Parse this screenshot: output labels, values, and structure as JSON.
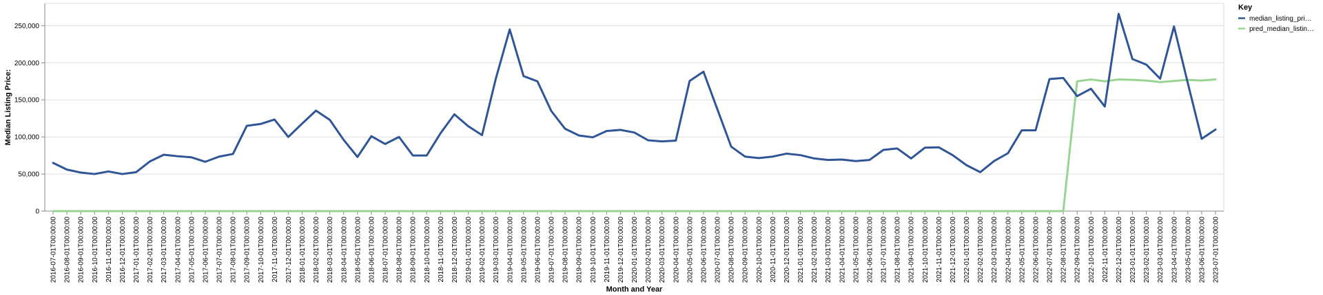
{
  "chart_data": {
    "type": "line",
    "xlabel": "Month and Year",
    "ylabel": "Median Listing Price:",
    "ylim": [
      0,
      280000
    ],
    "yticks": [
      0,
      50000,
      100000,
      150000,
      200000,
      250000
    ],
    "ytick_labels": [
      "0",
      "50,000",
      "100,000",
      "150,000",
      "200,000",
      "250,000"
    ],
    "grid": true,
    "legend": {
      "title": "Key",
      "placement": "top-right"
    },
    "x": [
      "2016-07-01T00:00:00",
      "2016-08-01T00:00:00",
      "2016-09-01T00:00:00",
      "2016-10-01T00:00:00",
      "2016-11-01T00:00:00",
      "2016-12-01T00:00:00",
      "2017-01-01T00:00:00",
      "2017-02-01T00:00:00",
      "2017-03-01T00:00:00",
      "2017-04-01T00:00:00",
      "2017-05-01T00:00:00",
      "2017-06-01T00:00:00",
      "2017-07-01T00:00:00",
      "2017-08-01T00:00:00",
      "2017-09-01T00:00:00",
      "2017-10-01T00:00:00",
      "2017-11-01T00:00:00",
      "2017-12-01T00:00:00",
      "2018-01-01T00:00:00",
      "2018-02-01T00:00:00",
      "2018-03-01T00:00:00",
      "2018-04-01T00:00:00",
      "2018-05-01T00:00:00",
      "2018-06-01T00:00:00",
      "2018-07-01T00:00:00",
      "2018-08-01T00:00:00",
      "2018-09-01T00:00:00",
      "2018-10-01T00:00:00",
      "2018-11-01T00:00:00",
      "2018-12-01T00:00:00",
      "2019-01-01T00:00:00",
      "2019-02-01T00:00:00",
      "2019-03-01T00:00:00",
      "2019-04-01T00:00:00",
      "2019-05-01T00:00:00",
      "2019-06-01T00:00:00",
      "2019-07-01T00:00:00",
      "2019-08-01T00:00:00",
      "2019-09-01T00:00:00",
      "2019-10-01T00:00:00",
      "2019-11-01T00:00:00",
      "2019-12-01T00:00:00",
      "2020-01-01T00:00:00",
      "2020-02-01T00:00:00",
      "2020-03-01T00:00:00",
      "2020-04-01T00:00:00",
      "2020-05-01T00:00:00",
      "2020-06-01T00:00:00",
      "2020-07-01T00:00:00",
      "2020-08-01T00:00:00",
      "2020-09-01T00:00:00",
      "2020-10-01T00:00:00",
      "2020-11-01T00:00:00",
      "2020-12-01T00:00:00",
      "2021-01-01T00:00:00",
      "2021-02-01T00:00:00",
      "2021-03-01T00:00:00",
      "2021-04-01T00:00:00",
      "2021-05-01T00:00:00",
      "2021-06-01T00:00:00",
      "2021-07-01T00:00:00",
      "2021-08-01T00:00:00",
      "2021-09-01T00:00:00",
      "2021-10-01T00:00:00",
      "2021-11-01T00:00:00",
      "2021-12-01T00:00:00",
      "2022-01-01T00:00:00",
      "2022-02-01T00:00:00",
      "2022-03-01T00:00:00",
      "2022-04-01T00:00:00",
      "2022-05-01T00:00:00",
      "2022-06-01T00:00:00",
      "2022-07-01T00:00:00",
      "2022-08-01T00:00:00",
      "2022-09-01T00:00:00",
      "2022-10-01T00:00:00",
      "2022-11-01T00:00:00",
      "2022-12-01T00:00:00",
      "2023-01-01T00:00:00",
      "2023-02-01T00:00:00",
      "2023-03-01T00:00:00",
      "2023-04-01T00:00:00",
      "2023-05-01T00:00:00",
      "2023-06-01T00:00:00",
      "2023-07-01T00:00:00"
    ],
    "series": [
      {
        "name": "median_listing_pri…",
        "color": "#2f5597",
        "values": [
          65000,
          56000,
          52000,
          50000,
          53500,
          50000,
          52500,
          67000,
          76000,
          74000,
          72500,
          66500,
          73500,
          77000,
          115000,
          117500,
          123500,
          100000,
          118000,
          135500,
          123000,
          96000,
          73000,
          101000,
          90500,
          100000,
          75000,
          75000,
          105000,
          130500,
          114500,
          102500,
          179000,
          245000,
          182000,
          175000,
          135000,
          111000,
          102000,
          99500,
          108000,
          109500,
          106000,
          95500,
          94000,
          95000,
          175500,
          188000,
          137500,
          87000,
          73500,
          71500,
          73500,
          77500,
          75500,
          71000,
          69000,
          69500,
          67500,
          69000,
          82500,
          84500,
          71000,
          85500,
          86000,
          75500,
          62000,
          52500,
          67500,
          78000,
          109000,
          109000,
          178000,
          179500,
          155000,
          165000,
          141000,
          266000,
          205000,
          197500,
          178500,
          249000,
          172500,
          97500,
          110000
        ]
      },
      {
        "name": "pred_median_listin…",
        "color": "#98d593",
        "values": [
          0,
          0,
          0,
          0,
          0,
          0,
          0,
          0,
          0,
          0,
          0,
          0,
          0,
          0,
          0,
          0,
          0,
          0,
          0,
          0,
          0,
          0,
          0,
          0,
          0,
          0,
          0,
          0,
          0,
          0,
          0,
          0,
          0,
          0,
          0,
          0,
          0,
          0,
          0,
          0,
          0,
          0,
          0,
          0,
          0,
          0,
          0,
          0,
          0,
          0,
          0,
          0,
          0,
          0,
          0,
          0,
          0,
          0,
          0,
          0,
          0,
          0,
          0,
          0,
          0,
          0,
          0,
          0,
          0,
          0,
          0,
          0,
          0,
          0,
          175000,
          177500,
          175000,
          177500,
          177000,
          176000,
          174000,
          175500,
          177000,
          176000,
          177500
        ]
      }
    ]
  }
}
